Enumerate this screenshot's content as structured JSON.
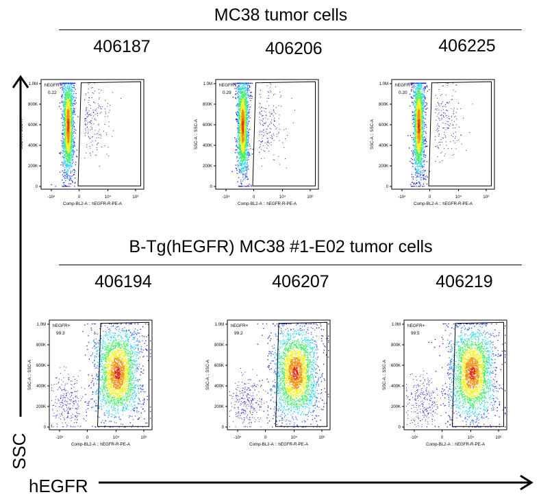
{
  "colors": {
    "density_ramp": [
      "#1a10d0",
      "#2a6cf0",
      "#22d6f0",
      "#3cf060",
      "#f2f020",
      "#f09010",
      "#e02010"
    ]
  },
  "groups": [
    {
      "title": "MC38 tumor cells",
      "panels": [
        {
          "id": "406187",
          "gate_label": "hEGFR+",
          "gate_pct": "0.22"
        },
        {
          "id": "406206",
          "gate_label": "hEGFR+",
          "gate_pct": "0.29"
        },
        {
          "id": "406225",
          "gate_label": "hEGFR+",
          "gate_pct": "0.20"
        }
      ]
    },
    {
      "title": "B-Tg(hEGFR) MC38 #1-E02 tumor cells",
      "panels": [
        {
          "id": "406194",
          "gate_label": "hEGFR+",
          "gate_pct": "99.3"
        },
        {
          "id": "406207",
          "gate_label": "hEGFR+",
          "gate_pct": "99.2"
        },
        {
          "id": "406219",
          "gate_label": "hEGFR+",
          "gate_pct": "99.5"
        }
      ]
    }
  ],
  "axes": {
    "y_title": "SSC",
    "x_title": "hEGFR"
  },
  "chart_data": {
    "type": "scatter",
    "plot_style": "flow cytometry pseudocolor dot plot",
    "xlabel": "Comp-BL2-A :: hEGFR-R-PE-A",
    "ylabel": "SSC-A :: SSC-A",
    "x_scale": "biexponential",
    "x_ticks": [
      "-10⁴",
      "0",
      "10⁴",
      "10⁶"
    ],
    "y_ticks": [
      "0",
      "200K",
      "400K",
      "600K",
      "800K",
      "1.0M"
    ],
    "ylim": [
      0,
      1000000
    ],
    "series": [
      {
        "name": "406187",
        "gate": "hEGFR+",
        "gate_percent": 0.22
      },
      {
        "name": "406206",
        "gate": "hEGFR+",
        "gate_percent": 0.29
      },
      {
        "name": "406225",
        "gate": "hEGFR+",
        "gate_percent": 0.2
      },
      {
        "name": "406194",
        "gate": "hEGFR+",
        "gate_percent": 99.3
      },
      {
        "name": "406207",
        "gate": "hEGFR+",
        "gate_percent": 99.2
      },
      {
        "name": "406219",
        "gate": "hEGFR+",
        "gate_percent": 99.5
      }
    ]
  }
}
